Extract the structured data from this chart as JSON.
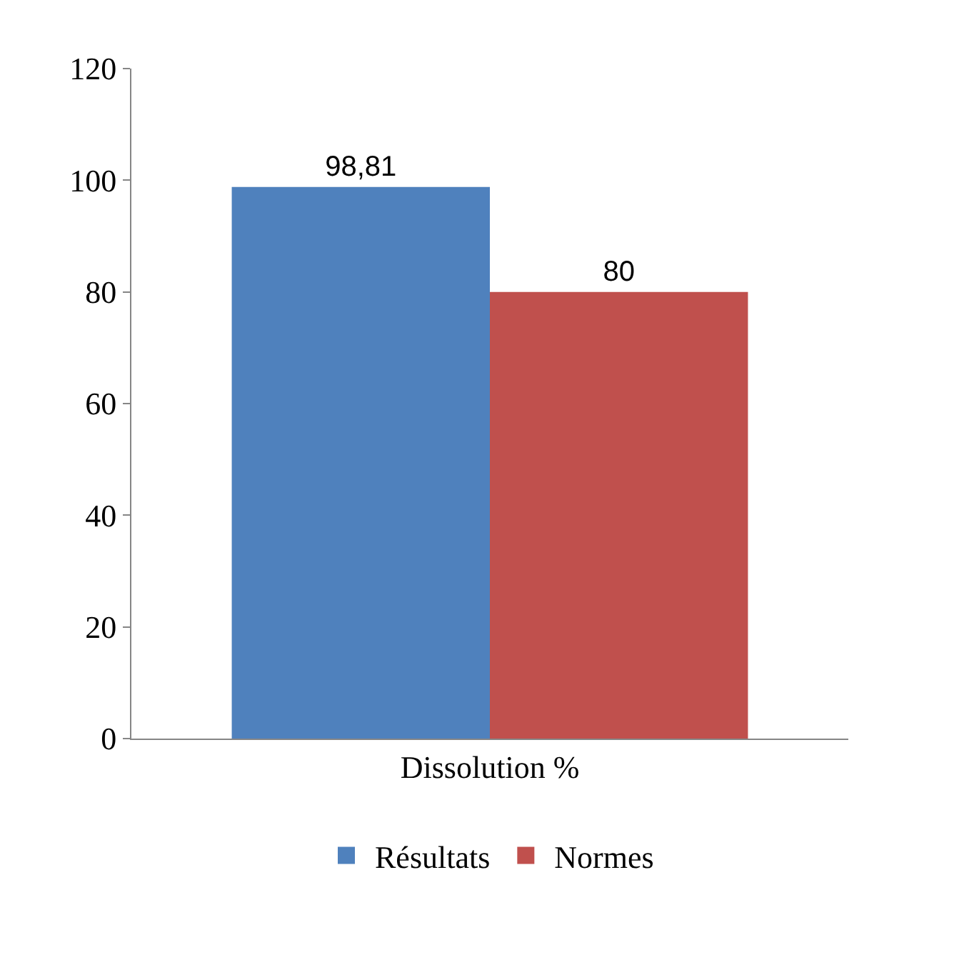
{
  "chart_data": {
    "type": "bar",
    "categories": [
      "Dissolution %"
    ],
    "series": [
      {
        "name": "Résultats",
        "color": "#4f81bd",
        "values": [
          98.81
        ],
        "value_labels": [
          "98,81"
        ]
      },
      {
        "name": "Normes",
        "color": "#c0504d",
        "values": [
          80
        ],
        "value_labels": [
          "80"
        ]
      }
    ],
    "ylim": [
      0,
      120
    ],
    "yticks": [
      0,
      20,
      40,
      60,
      80,
      100,
      120
    ],
    "grid": false,
    "legend": "bottom"
  }
}
